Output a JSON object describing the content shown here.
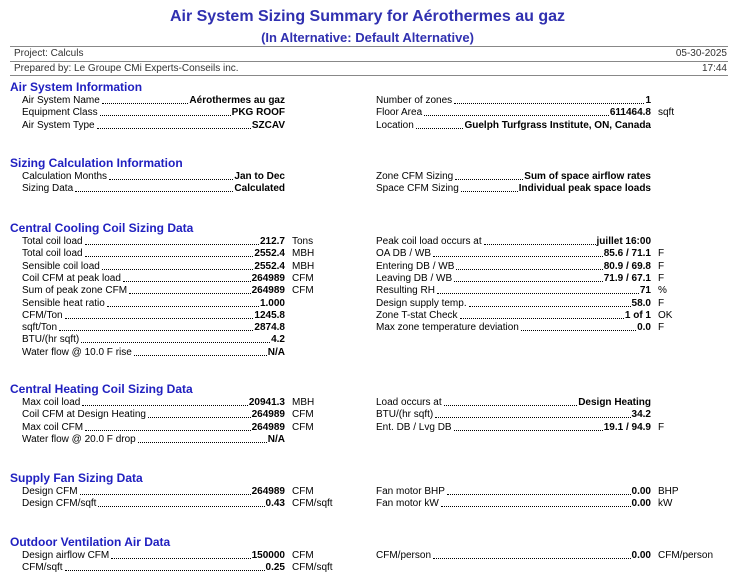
{
  "header": {
    "title": "Air System Sizing Summary for Aérothermes au gaz",
    "subtitle": "(In Alternative: Default Alternative)",
    "project": "Project: Calculs",
    "date": "05-30-2025",
    "prepared_by": "Prepared by: Le Groupe CMi Experts-Conseils inc.",
    "time": "17:44"
  },
  "sections": [
    {
      "title": "Air System Information",
      "left": [
        {
          "label": "Air System Name",
          "value": "Aérothermes au gaz"
        },
        {
          "label": "Equipment Class",
          "value": "PKG ROOF"
        },
        {
          "label": "Air System Type",
          "value": "SZCAV"
        }
      ],
      "right": [
        {
          "label": "Number of zones",
          "value": "1"
        },
        {
          "label": "Floor Area",
          "value": "611464.8",
          "unit": "sqft"
        },
        {
          "label": "Location",
          "value": "Guelph Turfgrass Institute, ON, Canada"
        }
      ]
    },
    {
      "title": "Sizing Calculation Information",
      "left": [
        {
          "label": "Calculation Months",
          "value": "Jan to Dec"
        },
        {
          "label": "Sizing Data",
          "value": "Calculated"
        }
      ],
      "right": [
        {
          "label": "Zone CFM Sizing",
          "value": "Sum of space airflow rates"
        },
        {
          "label": "Space CFM Sizing",
          "value": "Individual peak space loads"
        }
      ]
    },
    {
      "title": "Central Cooling Coil Sizing Data",
      "left": [
        {
          "label": "Total coil load",
          "value": "212.7",
          "unit": "Tons"
        },
        {
          "label": "Total coil load",
          "value": "2552.4",
          "unit": "MBH"
        },
        {
          "label": "Sensible coil load",
          "value": "2552.4",
          "unit": "MBH"
        },
        {
          "label": "Coil CFM at peak load",
          "value": "264989",
          "unit": "CFM"
        },
        {
          "label": "Sum of peak zone CFM",
          "value": "264989",
          "unit": "CFM"
        },
        {
          "label": "Sensible heat ratio",
          "value": "1.000"
        },
        {
          "label": "CFM/Ton",
          "value": "1245.8"
        },
        {
          "label": "sqft/Ton",
          "value": "2874.8"
        },
        {
          "label": "BTU/(hr sqft)",
          "value": "4.2"
        },
        {
          "label": "Water flow @ 10.0 F rise",
          "value": "N/A"
        }
      ],
      "right": [
        {
          "label": "Peak coil load occurs at",
          "value": "juillet 16:00"
        },
        {
          "label": "OA DB / WB",
          "value": "85.6 / 71.1",
          "unit": "F"
        },
        {
          "label": "Entering DB / WB",
          "value": "80.9 / 69.8",
          "unit": "F"
        },
        {
          "label": "Leaving DB / WB",
          "value": "71.9 / 67.1",
          "unit": "F"
        },
        {
          "label": "Resulting RH",
          "value": "71",
          "unit": "%"
        },
        {
          "label": "Design supply temp.",
          "value": "58.0",
          "unit": "F"
        },
        {
          "label": "Zone T-stat Check",
          "value": "1 of 1",
          "unit": "OK"
        },
        {
          "label": "Max zone temperature deviation",
          "value": "0.0",
          "unit": "F"
        }
      ]
    },
    {
      "title": "Central Heating Coil Sizing Data",
      "left": [
        {
          "label": "Max coil load",
          "value": "20941.3",
          "unit": "MBH"
        },
        {
          "label": "Coil CFM at Design Heating",
          "value": "264989",
          "unit": "CFM"
        },
        {
          "label": "Max coil CFM",
          "value": "264989",
          "unit": "CFM"
        },
        {
          "label": "Water flow @ 20.0 F drop",
          "value": "N/A"
        }
      ],
      "right": [
        {
          "label": "Load occurs at",
          "value": "Design Heating"
        },
        {
          "label": "BTU/(hr sqft)",
          "value": "34.2"
        },
        {
          "label": "Ent. DB / Lvg DB",
          "value": "19.1 / 94.9",
          "unit": "F"
        }
      ]
    },
    {
      "title": "Supply Fan Sizing Data",
      "left": [
        {
          "label": "Design CFM",
          "value": "264989",
          "unit": "CFM"
        },
        {
          "label": "Design CFM/sqft",
          "value": "0.43",
          "unit": "CFM/sqft"
        }
      ],
      "right": [
        {
          "label": "Fan motor BHP",
          "value": "0.00",
          "unit": "BHP"
        },
        {
          "label": "Fan motor kW",
          "value": "0.00",
          "unit": "kW"
        }
      ]
    },
    {
      "title": "Outdoor Ventilation Air Data",
      "left": [
        {
          "label": "Design airflow CFM",
          "value": "150000",
          "unit": "CFM"
        },
        {
          "label": "CFM/sqft",
          "value": "0.25",
          "unit": "CFM/sqft"
        }
      ],
      "right": [
        {
          "label": "CFM/person",
          "value": "0.00",
          "unit": "CFM/person"
        }
      ]
    }
  ]
}
